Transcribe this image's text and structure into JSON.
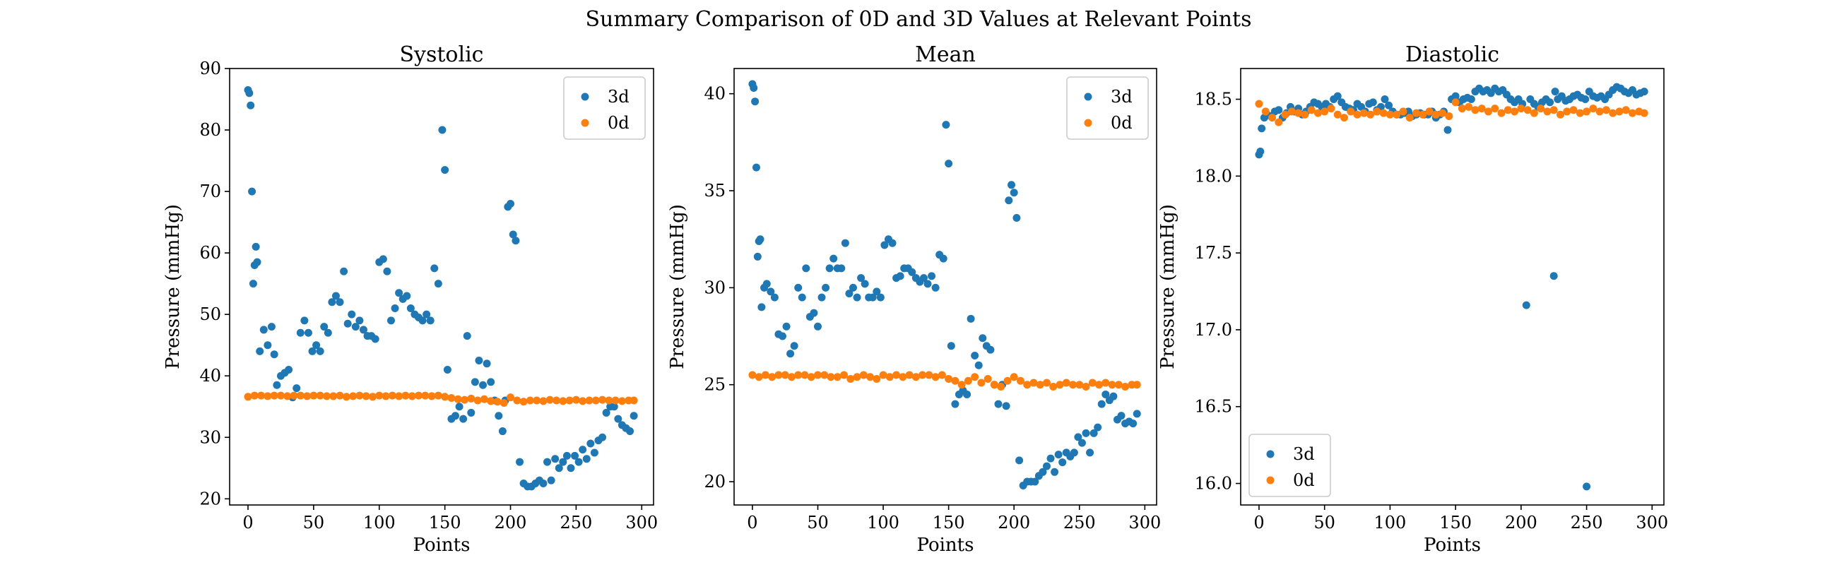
{
  "figure": {
    "title": "Summary Comparison of 0D and 3D Values at Relevant Points",
    "colors": {
      "3d": "#1f77b4",
      "0d": "#ff7f0e"
    }
  },
  "chart_data": [
    {
      "type": "scatter",
      "title": "Systolic",
      "xlabel": "Points",
      "ylabel": "Pressure (mmHg)",
      "xlim": [
        -14,
        309
      ],
      "ylim": [
        19,
        90
      ],
      "xticks": [
        0,
        50,
        100,
        150,
        200,
        250,
        300
      ],
      "yticks": [
        20,
        30,
        40,
        50,
        60,
        70,
        80,
        90
      ],
      "tick_decimals": 0,
      "legend": "top-right",
      "series": [
        {
          "name": "3d",
          "x": [
            0,
            1,
            2,
            3,
            4,
            5,
            6,
            7,
            9,
            12,
            15,
            18,
            20,
            22,
            25,
            28,
            31,
            34,
            37,
            40,
            43,
            46,
            49,
            52,
            55,
            58,
            61,
            64,
            67,
            70,
            73,
            76,
            79,
            82,
            85,
            88,
            91,
            94,
            97,
            100,
            103,
            106,
            109,
            112,
            115,
            118,
            121,
            124,
            127,
            130,
            133,
            136,
            139,
            142,
            145,
            148,
            150,
            152,
            155,
            158,
            161,
            164,
            167,
            170,
            173,
            176,
            179,
            182,
            185,
            188,
            191,
            194,
            196,
            198,
            200,
            202,
            204,
            207,
            210,
            213,
            216,
            219,
            222,
            225,
            228,
            231,
            234,
            237,
            240,
            243,
            246,
            249,
            252,
            255,
            258,
            261,
            264,
            267,
            270,
            273,
            276,
            279,
            282,
            285,
            288,
            291,
            294
          ],
          "y": [
            86.5,
            86,
            84,
            70,
            55,
            58,
            61,
            58.5,
            44,
            47.5,
            45,
            48,
            43.5,
            38.5,
            40,
            40.5,
            41,
            36.5,
            38,
            47,
            49,
            47,
            44,
            45,
            44,
            48,
            47,
            52,
            53,
            52,
            57,
            48.5,
            50,
            48,
            49,
            47.5,
            46.5,
            46.5,
            46,
            58.5,
            59,
            57,
            49,
            51,
            53.5,
            52.5,
            53,
            51,
            50,
            49.5,
            49,
            50,
            49,
            57.5,
            55,
            80,
            73.5,
            41,
            33,
            33.5,
            35,
            33,
            46.5,
            34,
            39,
            42.5,
            38.5,
            42,
            39,
            36,
            33.5,
            31,
            36,
            67.5,
            68,
            63,
            62,
            26,
            22.5,
            22,
            22,
            22.5,
            23,
            22.5,
            26,
            23,
            26.5,
            25,
            26,
            27,
            25,
            27,
            26,
            28,
            26.5,
            29,
            27.5,
            29.5,
            30,
            34,
            35,
            35,
            33,
            32,
            31.5,
            31,
            33.5
          ]
        },
        {
          "name": "0d",
          "x": [
            0,
            5,
            10,
            15,
            20,
            25,
            30,
            35,
            40,
            45,
            50,
            55,
            60,
            65,
            70,
            75,
            80,
            85,
            90,
            95,
            100,
            105,
            110,
            115,
            120,
            125,
            130,
            135,
            140,
            145,
            150,
            155,
            160,
            165,
            170,
            175,
            180,
            185,
            190,
            195,
            200,
            205,
            210,
            215,
            220,
            225,
            230,
            235,
            240,
            245,
            250,
            255,
            260,
            265,
            270,
            275,
            280,
            285,
            290,
            294
          ],
          "y": [
            36.6,
            36.8,
            36.8,
            36.7,
            36.8,
            36.8,
            36.7,
            36.8,
            36.8,
            36.7,
            36.8,
            36.8,
            36.7,
            36.7,
            36.8,
            36.6,
            36.7,
            36.8,
            36.7,
            36.6,
            36.8,
            36.7,
            36.8,
            36.7,
            36.8,
            36.7,
            36.8,
            36.8,
            36.7,
            36.8,
            36.6,
            36.4,
            36.2,
            36.1,
            36.3,
            36.0,
            36.2,
            35.9,
            35.8,
            35.6,
            36.5,
            36.0,
            35.8,
            36.0,
            36.0,
            35.9,
            36.1,
            36.0,
            35.9,
            36.0,
            36.1,
            35.9,
            36.0,
            36.0,
            36.1,
            36.0,
            36.0,
            35.9,
            36.0,
            36.0
          ]
        }
      ]
    },
    {
      "type": "scatter",
      "title": "Mean",
      "xlabel": "Points",
      "ylabel": "Pressure (mmHg)",
      "xlim": [
        -14,
        309
      ],
      "ylim": [
        18.8,
        41.3
      ],
      "xticks": [
        0,
        50,
        100,
        150,
        200,
        250,
        300
      ],
      "yticks": [
        20,
        25,
        30,
        35,
        40
      ],
      "tick_decimals": 0,
      "legend": "top-right",
      "series": [
        {
          "name": "3d",
          "x": [
            0,
            1,
            2,
            3,
            4,
            5,
            6,
            7,
            9,
            11,
            14,
            17,
            20,
            23,
            26,
            29,
            32,
            35,
            38,
            41,
            44,
            47,
            50,
            53,
            56,
            59,
            62,
            65,
            68,
            71,
            74,
            77,
            80,
            83,
            86,
            89,
            92,
            95,
            98,
            101,
            104,
            107,
            110,
            113,
            116,
            119,
            122,
            125,
            128,
            131,
            134,
            137,
            140,
            143,
            146,
            148,
            150,
            152,
            155,
            158,
            161,
            164,
            167,
            170,
            173,
            176,
            179,
            182,
            185,
            188,
            191,
            194,
            196,
            198,
            200,
            202,
            204,
            207,
            210,
            213,
            216,
            219,
            222,
            225,
            228,
            231,
            234,
            237,
            240,
            243,
            246,
            249,
            252,
            255,
            258,
            261,
            264,
            267,
            270,
            273,
            276,
            279,
            282,
            285,
            288,
            291,
            294
          ],
          "y": [
            40.5,
            40.3,
            39.6,
            36.2,
            31.6,
            32.4,
            32.5,
            29,
            30,
            30.2,
            29.8,
            29.5,
            27.6,
            27.5,
            28,
            26.6,
            27,
            30,
            29.5,
            31,
            28.5,
            28.7,
            28,
            29.5,
            30,
            31,
            31.5,
            31,
            31,
            32.3,
            29.7,
            30,
            29.5,
            30.5,
            30.2,
            29.5,
            29.5,
            29.8,
            29.5,
            32.2,
            32.5,
            32.3,
            30.5,
            30.6,
            31,
            31,
            30.8,
            30.5,
            30.3,
            30.5,
            30.2,
            30.6,
            30,
            31.7,
            31.5,
            38.4,
            36.4,
            27,
            24,
            24.5,
            24.7,
            24.5,
            28.4,
            26.5,
            26,
            27.4,
            27,
            26.8,
            25,
            24,
            25,
            23.9,
            34.5,
            35.3,
            34.9,
            33.6,
            21.1,
            19.8,
            20,
            20,
            20,
            20.3,
            20.5,
            20.8,
            21.2,
            20.5,
            21.4,
            21,
            21.5,
            21.3,
            21.5,
            22.3,
            22,
            22.5,
            21.5,
            22.5,
            22.8,
            24,
            24.5,
            24.2,
            24.4,
            23.2,
            23.4,
            23,
            23.1,
            23,
            23.5
          ]
        },
        {
          "name": "0d",
          "x": [
            0,
            5,
            10,
            15,
            20,
            25,
            30,
            35,
            40,
            45,
            50,
            55,
            60,
            65,
            70,
            75,
            80,
            85,
            90,
            95,
            100,
            105,
            110,
            115,
            120,
            125,
            130,
            135,
            140,
            145,
            150,
            155,
            160,
            165,
            170,
            175,
            180,
            185,
            190,
            195,
            200,
            205,
            210,
            215,
            220,
            225,
            230,
            235,
            240,
            245,
            250,
            255,
            260,
            265,
            270,
            275,
            280,
            285,
            290,
            294
          ],
          "y": [
            25.5,
            25.4,
            25.5,
            25.4,
            25.5,
            25.5,
            25.4,
            25.5,
            25.5,
            25.4,
            25.5,
            25.5,
            25.4,
            25.4,
            25.5,
            25.3,
            25.4,
            25.5,
            25.4,
            25.3,
            25.5,
            25.4,
            25.5,
            25.4,
            25.5,
            25.4,
            25.5,
            25.5,
            25.4,
            25.5,
            25.3,
            25.2,
            25.0,
            25.2,
            25.4,
            25.1,
            25.3,
            25.0,
            24.9,
            25.2,
            25.4,
            25.2,
            25.0,
            25.1,
            25.0,
            25.1,
            24.9,
            25.0,
            25.1,
            25.0,
            25.0,
            24.9,
            25.1,
            25.0,
            25.1,
            25.0,
            25.0,
            24.9,
            25.0,
            25.0
          ]
        }
      ]
    },
    {
      "type": "scatter",
      "title": "Diastolic",
      "xlabel": "Points",
      "ylabel": "Pressure (mmHg)",
      "xlim": [
        -14,
        309
      ],
      "ylim": [
        15.86,
        18.7
      ],
      "xticks": [
        0,
        50,
        100,
        150,
        200,
        250,
        300
      ],
      "yticks": [
        16.0,
        16.5,
        17.0,
        17.5,
        18.0,
        18.5
      ],
      "tick_decimals": 1,
      "legend": "lower-left",
      "series": [
        {
          "name": "3d",
          "x": [
            0,
            1,
            2,
            4,
            6,
            9,
            12,
            15,
            18,
            21,
            24,
            27,
            30,
            33,
            36,
            39,
            42,
            45,
            48,
            51,
            54,
            57,
            60,
            63,
            66,
            69,
            72,
            75,
            78,
            81,
            84,
            87,
            90,
            93,
            96,
            99,
            102,
            105,
            108,
            111,
            114,
            117,
            120,
            123,
            126,
            129,
            132,
            135,
            138,
            141,
            144,
            147,
            150,
            153,
            156,
            159,
            162,
            165,
            168,
            171,
            174,
            177,
            180,
            183,
            186,
            189,
            192,
            195,
            198,
            201,
            204,
            207,
            210,
            213,
            216,
            219,
            222,
            225,
            226,
            228,
            231,
            234,
            237,
            240,
            243,
            246,
            249,
            250,
            252,
            255,
            258,
            261,
            264,
            267,
            270,
            273,
            276,
            279,
            282,
            285,
            288,
            291,
            294
          ],
          "y": [
            18.14,
            18.16,
            18.31,
            18.38,
            18.4,
            18.39,
            18.42,
            18.43,
            18.38,
            18.41,
            18.45,
            18.42,
            18.44,
            18.4,
            18.42,
            18.45,
            18.48,
            18.47,
            18.45,
            18.47,
            18.45,
            18.5,
            18.52,
            18.48,
            18.45,
            18.44,
            18.43,
            18.47,
            18.45,
            18.42,
            18.47,
            18.48,
            18.43,
            18.45,
            18.5,
            18.46,
            18.42,
            18.4,
            18.4,
            18.41,
            18.42,
            18.39,
            18.4,
            18.41,
            18.4,
            18.4,
            18.42,
            18.38,
            18.4,
            18.42,
            18.3,
            18.5,
            18.52,
            18.48,
            18.5,
            18.51,
            18.5,
            18.55,
            18.57,
            18.55,
            18.56,
            18.54,
            18.57,
            18.55,
            18.56,
            18.53,
            18.5,
            18.48,
            18.5,
            18.47,
            17.16,
            18.5,
            18.47,
            18.45,
            18.48,
            18.5,
            18.48,
            17.35,
            18.55,
            18.5,
            18.52,
            18.49,
            18.5,
            18.52,
            18.53,
            18.51,
            18.5,
            15.98,
            18.55,
            18.52,
            18.51,
            18.52,
            18.5,
            18.53,
            18.56,
            18.58,
            18.57,
            18.55,
            18.54,
            18.56,
            18.53,
            18.54,
            18.55
          ]
        },
        {
          "name": "0d",
          "x": [
            0,
            5,
            10,
            15,
            20,
            25,
            30,
            35,
            40,
            45,
            50,
            55,
            60,
            65,
            70,
            75,
            80,
            85,
            90,
            95,
            100,
            105,
            110,
            115,
            120,
            125,
            130,
            135,
            140,
            145,
            150,
            155,
            160,
            165,
            170,
            175,
            180,
            185,
            190,
            195,
            200,
            205,
            210,
            215,
            220,
            225,
            230,
            235,
            240,
            245,
            250,
            255,
            260,
            265,
            270,
            275,
            280,
            285,
            290,
            294
          ],
          "y": [
            18.47,
            18.42,
            18.38,
            18.35,
            18.4,
            18.42,
            18.41,
            18.4,
            18.43,
            18.41,
            18.42,
            18.44,
            18.4,
            18.38,
            18.42,
            18.4,
            18.41,
            18.4,
            18.42,
            18.41,
            18.4,
            18.4,
            18.42,
            18.38,
            18.41,
            18.4,
            18.42,
            18.4,
            18.41,
            18.39,
            18.48,
            18.44,
            18.45,
            18.43,
            18.44,
            18.42,
            18.44,
            18.41,
            18.43,
            18.42,
            18.44,
            18.43,
            18.41,
            18.44,
            18.42,
            18.43,
            18.4,
            18.42,
            18.43,
            18.41,
            18.42,
            18.44,
            18.42,
            18.43,
            18.41,
            18.42,
            18.43,
            18.41,
            18.42,
            18.41
          ]
        }
      ]
    }
  ]
}
